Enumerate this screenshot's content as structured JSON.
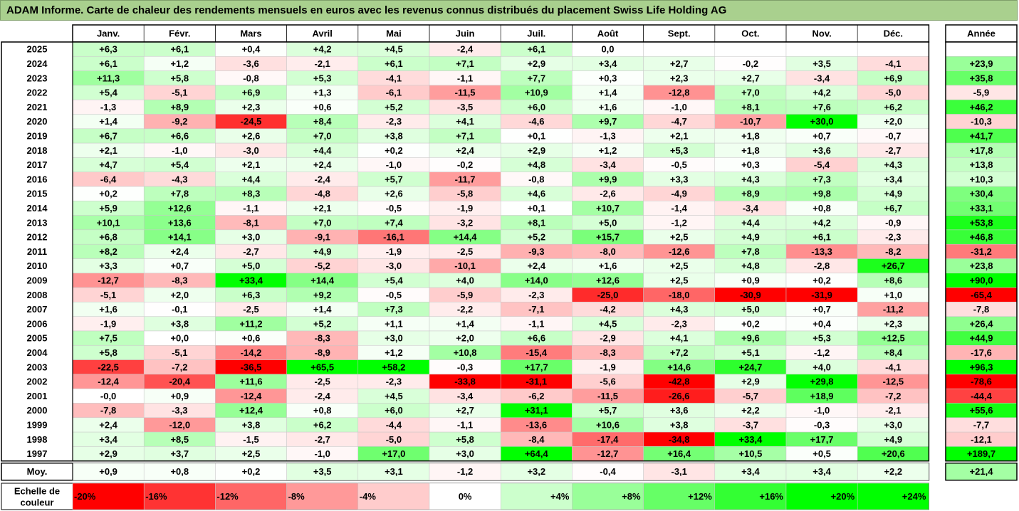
{
  "title": "ADAM Informe. Carte de chaleur des rendements mensuels en euros avec les revenus connus distribués du placement Swiss Life Holding AG",
  "chart_data": {
    "type": "heatmap",
    "title": "ADAM Informe. Carte de chaleur des rendements mensuels en euros avec les revenus connus distribués du placement Swiss Life Holding AG",
    "columns": [
      "Janv.",
      "Févr.",
      "Mars",
      "Avril",
      "Mai",
      "Juin",
      "Juil.",
      "Août",
      "Sept.",
      "Oct.",
      "Nov.",
      "Déc."
    ],
    "year_column": "Année",
    "rows": [
      {
        "year": "2025",
        "values": [
          "+6,3",
          "+6,1",
          "+0,4",
          "+4,2",
          "+4,5",
          "-2,4",
          "+6,1",
          "0,0",
          "",
          "",
          "",
          ""
        ],
        "annual": ""
      },
      {
        "year": "2024",
        "values": [
          "+6,1",
          "+1,2",
          "-3,6",
          "-2,1",
          "+6,1",
          "+7,1",
          "+2,9",
          "+3,4",
          "+2,7",
          "-0,2",
          "+3,5",
          "-4,1"
        ],
        "annual": "+23,9"
      },
      {
        "year": "2023",
        "values": [
          "+11,3",
          "+5,8",
          "-0,8",
          "+5,3",
          "-4,1",
          "-1,1",
          "+7,7",
          "+0,3",
          "+2,3",
          "+2,7",
          "-3,4",
          "+6,9"
        ],
        "annual": "+35,8"
      },
      {
        "year": "2022",
        "values": [
          "+5,4",
          "-5,1",
          "+6,9",
          "+1,3",
          "-6,1",
          "-11,5",
          "+10,9",
          "+1,4",
          "-12,8",
          "+7,0",
          "+4,2",
          "-5,0"
        ],
        "annual": "-5,9"
      },
      {
        "year": "2021",
        "values": [
          "-1,3",
          "+8,9",
          "+2,3",
          "+0,6",
          "+5,2",
          "-3,5",
          "+6,0",
          "+1,6",
          "-1,0",
          "+8,1",
          "+7,6",
          "+6,2"
        ],
        "annual": "+46,2"
      },
      {
        "year": "2020",
        "values": [
          "+1,4",
          "-9,2",
          "-24,5",
          "+8,4",
          "-2,3",
          "+4,1",
          "-4,6",
          "+9,7",
          "-4,7",
          "-10,7",
          "+30,0",
          "+2,0"
        ],
        "annual": "-10,3"
      },
      {
        "year": "2019",
        "values": [
          "+6,7",
          "+6,6",
          "+2,6",
          "+7,0",
          "+3,8",
          "+7,1",
          "+0,1",
          "-1,3",
          "+2,1",
          "+1,8",
          "+0,7",
          "-0,7"
        ],
        "annual": "+41,7"
      },
      {
        "year": "2018",
        "values": [
          "+2,1",
          "-1,0",
          "-3,0",
          "+4,4",
          "+0,2",
          "+2,4",
          "+2,9",
          "+1,2",
          "+5,3",
          "+1,8",
          "+3,6",
          "-2,7"
        ],
        "annual": "+17,8"
      },
      {
        "year": "2017",
        "values": [
          "+4,7",
          "+5,4",
          "+2,1",
          "+2,4",
          "-1,0",
          "-0,2",
          "+4,8",
          "-3,4",
          "-0,5",
          "+0,3",
          "-5,4",
          "+4,3"
        ],
        "annual": "+13,8"
      },
      {
        "year": "2016",
        "values": [
          "-6,4",
          "-4,3",
          "+4,4",
          "-2,4",
          "+5,7",
          "-11,7",
          "-0,8",
          "+9,9",
          "+3,3",
          "+4,3",
          "+7,3",
          "+3,4"
        ],
        "annual": "+10,3"
      },
      {
        "year": "2015",
        "values": [
          "+0,2",
          "+7,8",
          "+8,3",
          "-4,8",
          "+2,6",
          "-5,8",
          "+4,6",
          "-2,6",
          "-4,9",
          "+8,9",
          "+9,8",
          "+4,9"
        ],
        "annual": "+30,4"
      },
      {
        "year": "2014",
        "values": [
          "+5,9",
          "+12,6",
          "-1,1",
          "+2,1",
          "-0,5",
          "-1,9",
          "+0,1",
          "+10,7",
          "-1,4",
          "-3,4",
          "+0,8",
          "+6,7"
        ],
        "annual": "+33,1"
      },
      {
        "year": "2013",
        "values": [
          "+10,1",
          "+13,6",
          "-8,1",
          "+7,0",
          "+7,4",
          "-3,2",
          "+8,1",
          "+5,0",
          "-1,2",
          "+4,4",
          "+4,2",
          "-0,9"
        ],
        "annual": "+53,8"
      },
      {
        "year": "2012",
        "values": [
          "+6,8",
          "+14,1",
          "+3,0",
          "-9,1",
          "-16,1",
          "+14,4",
          "+5,2",
          "+15,7",
          "+2,5",
          "+4,9",
          "+6,1",
          "-2,3"
        ],
        "annual": "+46,8"
      },
      {
        "year": "2011",
        "values": [
          "+8,2",
          "+2,4",
          "-2,7",
          "+4,9",
          "-1,9",
          "-2,5",
          "-9,3",
          "-8,0",
          "-12,6",
          "+7,8",
          "-13,3",
          "-8,2"
        ],
        "annual": "-31,2"
      },
      {
        "year": "2010",
        "values": [
          "+3,3",
          "+0,7",
          "+5,0",
          "-5,2",
          "-3,0",
          "-10,1",
          "+2,4",
          "+1,6",
          "+2,5",
          "+4,8",
          "-2,8",
          "+26,7"
        ],
        "annual": "+23,8"
      },
      {
        "year": "2009",
        "values": [
          "-12,7",
          "-8,3",
          "+33,4",
          "+14,4",
          "+5,4",
          "+4,0",
          "+14,0",
          "+12,6",
          "+2,5",
          "+0,9",
          "+0,2",
          "+8,6"
        ],
        "annual": "+90,0"
      },
      {
        "year": "2008",
        "values": [
          "-5,1",
          "+2,0",
          "+6,3",
          "+9,2",
          "-0,5",
          "-5,9",
          "-2,3",
          "-25,0",
          "-18,0",
          "-30,9",
          "-31,9",
          "+1,0"
        ],
        "annual": "-65,4"
      },
      {
        "year": "2007",
        "values": [
          "+1,6",
          "-0,1",
          "-2,5",
          "+1,4",
          "+7,3",
          "-2,2",
          "-7,1",
          "-4,2",
          "+4,3",
          "+5,0",
          "+0,7",
          "-11,2"
        ],
        "annual": "-7,8"
      },
      {
        "year": "2006",
        "values": [
          "-1,9",
          "+3,8",
          "+11,2",
          "+5,2",
          "+1,1",
          "+1,4",
          "-1,1",
          "+4,5",
          "-2,3",
          "+0,2",
          "+0,4",
          "+2,3"
        ],
        "annual": "+26,4"
      },
      {
        "year": "2005",
        "values": [
          "+7,5",
          "+0,0",
          "+0,6",
          "-8,3",
          "+3,0",
          "+2,0",
          "+6,6",
          "-2,9",
          "+4,1",
          "+9,6",
          "+5,3",
          "+12,5"
        ],
        "annual": "+44,9"
      },
      {
        "year": "2004",
        "values": [
          "+5,8",
          "-5,1",
          "-14,2",
          "-8,9",
          "+1,2",
          "+10,8",
          "-15,4",
          "-8,3",
          "+7,2",
          "+5,1",
          "-1,2",
          "+8,4"
        ],
        "annual": "-17,6"
      },
      {
        "year": "2003",
        "values": [
          "-22,5",
          "-7,2",
          "-36,5",
          "+65,5",
          "+58,2",
          "-0,3",
          "+17,7",
          "-1,9",
          "+14,6",
          "+24,7",
          "+4,0",
          "-4,1"
        ],
        "annual": "+96,3"
      },
      {
        "year": "2002",
        "values": [
          "-12,4",
          "-20,4",
          "+11,6",
          "-2,5",
          "-2,3",
          "-33,8",
          "-31,1",
          "-5,6",
          "-42,8",
          "+2,9",
          "+29,8",
          "-12,5"
        ],
        "annual": "-78,6"
      },
      {
        "year": "2001",
        "values": [
          "-0,0",
          "+0,9",
          "-12,4",
          "-2,4",
          "+4,5",
          "-3,4",
          "-6,2",
          "-11,5",
          "-26,6",
          "-5,7",
          "+18,9",
          "-7,2"
        ],
        "annual": "-44,4"
      },
      {
        "year": "2000",
        "values": [
          "-7,8",
          "-3,3",
          "+12,4",
          "+0,8",
          "+6,0",
          "+2,7",
          "+31,1",
          "+5,7",
          "+3,6",
          "+2,2",
          "-1,0",
          "-2,1"
        ],
        "annual": "+55,6"
      },
      {
        "year": "1999",
        "values": [
          "+2,4",
          "-12,0",
          "+3,8",
          "+6,2",
          "-4,4",
          "-1,1",
          "-13,6",
          "+10,6",
          "+3,8",
          "-3,7",
          "-0,3",
          "+3,0"
        ],
        "annual": "-7,7"
      },
      {
        "year": "1998",
        "values": [
          "+3,4",
          "+8,5",
          "-1,5",
          "-2,7",
          "-5,0",
          "+5,8",
          "-8,4",
          "-17,4",
          "-34,8",
          "+33,4",
          "+17,7",
          "+4,9"
        ],
        "annual": "-12,1"
      },
      {
        "year": "1997",
        "values": [
          "+2,9",
          "+3,7",
          "+2,5",
          "-1,0",
          "+17,0",
          "+3,0",
          "+64,4",
          "-12,7",
          "+16,4",
          "+10,5",
          "+0,5",
          "+20,6"
        ],
        "annual": "+189,7"
      }
    ],
    "average": {
      "label": "Moy.",
      "values": [
        "+0,9",
        "+0,8",
        "+0,2",
        "+3,5",
        "+3,1",
        "-1,2",
        "+3,2",
        "-0,4",
        "-3,1",
        "+3,4",
        "+3,4",
        "+2,2"
      ],
      "annual": "+21,4"
    },
    "scale": {
      "label_line1": "Echelle de",
      "label_line2": "couleur",
      "steps": [
        "-20%",
        "-16%",
        "-12%",
        "-8%",
        "-4%",
        "0%",
        "+4%",
        "+8%",
        "+12%",
        "+16%",
        "+20%",
        "+24%"
      ]
    },
    "colors": {
      "neg_max": "#ff0000",
      "pos_max": "#00ff00",
      "neutral": "#ffffff",
      "title_bg": "#a9d08e"
    }
  }
}
